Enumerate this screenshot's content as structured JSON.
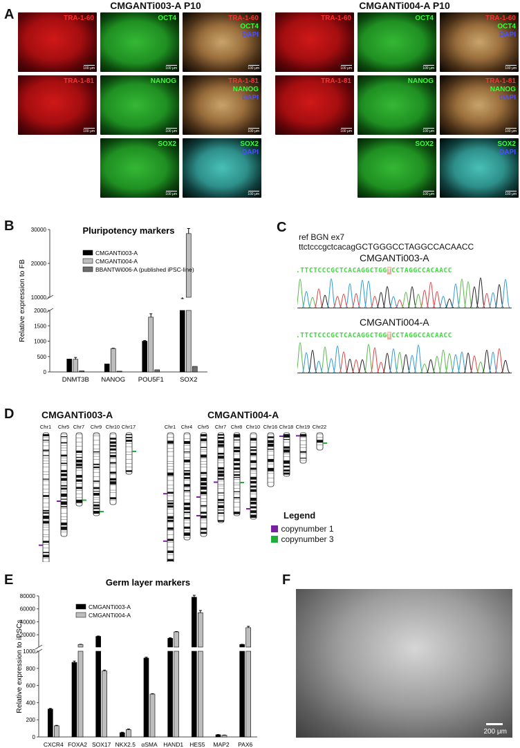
{
  "panelA": {
    "label": "A",
    "left_title": "CMGANTi003-A P10",
    "right_title": "CMGANTi004-A P10",
    "scalebar": "100 μm",
    "tiles": [
      {
        "id": "l-r1-c1",
        "labels": [
          "TRA-1-60"
        ],
        "colors": [
          "red"
        ],
        "bg": "red"
      },
      {
        "id": "l-r1-c2",
        "labels": [
          "OCT4"
        ],
        "colors": [
          "green"
        ],
        "bg": "green"
      },
      {
        "id": "l-r1-c3",
        "labels": [
          "TRA-1-60",
          "OCT4",
          "DAPI"
        ],
        "colors": [
          "red",
          "green",
          "blue"
        ],
        "bg": "merge"
      },
      {
        "id": "l-r2-c1",
        "labels": [
          "TRA-1-81"
        ],
        "colors": [
          "red"
        ],
        "bg": "red"
      },
      {
        "id": "l-r2-c2",
        "labels": [
          "NANOG"
        ],
        "colors": [
          "green"
        ],
        "bg": "green"
      },
      {
        "id": "l-r2-c3",
        "labels": [
          "TRA-1-81",
          "NANOG",
          "DAPI"
        ],
        "colors": [
          "red",
          "green",
          "blue"
        ],
        "bg": "merge"
      },
      {
        "id": "l-r3-c2",
        "labels": [
          "SOX2"
        ],
        "colors": [
          "green"
        ],
        "bg": "green"
      },
      {
        "id": "l-r3-c3",
        "labels": [
          "SOX2",
          "DAPI"
        ],
        "colors": [
          "green",
          "blue"
        ],
        "bg": "cyan"
      },
      {
        "id": "r-r1-c1",
        "labels": [
          "TRA-1-60"
        ],
        "colors": [
          "red"
        ],
        "bg": "red"
      },
      {
        "id": "r-r1-c2",
        "labels": [
          "OCT4"
        ],
        "colors": [
          "green"
        ],
        "bg": "green"
      },
      {
        "id": "r-r1-c3",
        "labels": [
          "TRA-1-60",
          "OCT4",
          "DAPI"
        ],
        "colors": [
          "red",
          "green",
          "blue"
        ],
        "bg": "merge"
      },
      {
        "id": "r-r2-c1",
        "labels": [
          "TRA-1-81"
        ],
        "colors": [
          "red"
        ],
        "bg": "red"
      },
      {
        "id": "r-r2-c2",
        "labels": [
          "NANOG"
        ],
        "colors": [
          "green"
        ],
        "bg": "green"
      },
      {
        "id": "r-r2-c3",
        "labels": [
          "TRA-1-81",
          "NANOG",
          "DAPI"
        ],
        "colors": [
          "red",
          "green",
          "blue"
        ],
        "bg": "merge"
      },
      {
        "id": "r-r3-c2",
        "labels": [
          "SOX2"
        ],
        "colors": [
          "green"
        ],
        "bg": "green"
      },
      {
        "id": "r-r3-c3",
        "labels": [
          "SOX2",
          "DAPI"
        ],
        "colors": [
          "green",
          "blue"
        ],
        "bg": "cyan"
      }
    ]
  },
  "panelB": {
    "label": "B"
  },
  "panelC": {
    "label": "C",
    "ref_text": "ref BGN ex7 ttctcccgctcacagGCTGGGCCTAGGCCACAACC",
    "sample1": "CMGANTi003-A",
    "sample2": "CMGANTi004-A",
    "seq_prefix": ".TTCTCCCGCTCACAGGCTGG",
    "seq_highlight": "T",
    "seq_suffix": "CCTAGGCCACAACC"
  },
  "panelD": {
    "label": "D",
    "left_title": "CMGANTi003-A",
    "right_title": "CMGANTi004-A",
    "left_chrs": [
      "Chr1",
      "Chr5",
      "Chr7",
      "Chr9",
      "Chr10",
      "Chr17"
    ],
    "right_chrs": [
      "Chr1",
      "Chr4",
      "Chr5",
      "Chr7",
      "Chr8",
      "Chr10",
      "Chr16",
      "Chr18",
      "Chr19",
      "Chr22"
    ],
    "legend_title": "Legend",
    "legend_items": [
      {
        "label": "copynumber 1",
        "color": "#7b1fa2"
      },
      {
        "label": "copynumber 3",
        "color": "#1fae3a"
      }
    ]
  },
  "panelE": {
    "label": "E"
  },
  "panelF": {
    "label": "F",
    "scalebar": "200 μm"
  },
  "chart_data": [
    {
      "type": "bar",
      "title": "Pluripotency markers",
      "ylabel": "Relative expression to FB",
      "categories": [
        "DNMT3B",
        "NANOG",
        "POU5F1",
        "SOX2"
      ],
      "broken_axis": {
        "lower_range": [
          0,
          2000
        ],
        "upper_range": [
          10000,
          30000
        ]
      },
      "yticks_lower": [
        "0",
        "500",
        "1000",
        "1500",
        "2000"
      ],
      "yticks_upper": [
        "10000",
        "20000",
        "30000"
      ],
      "series": [
        {
          "name": "CMGANTi003-A",
          "color": "#000000",
          "values": [
            420,
            260,
            1000,
            9300
          ],
          "errors": [
            0,
            0,
            20,
            300
          ]
        },
        {
          "name": "CMGANTi004-A",
          "color": "#bdbdbd",
          "values": [
            410,
            760,
            1780,
            28800
          ],
          "errors": [
            60,
            10,
            110,
            1500
          ]
        },
        {
          "name": "BBANTWi006-A (published iPSC-line)",
          "color": "#6e6e6e",
          "values": [
            35,
            25,
            70,
            180
          ],
          "errors": [
            0,
            0,
            0,
            0
          ]
        }
      ]
    },
    {
      "type": "bar",
      "title": "Germ layer markers",
      "ylabel": "Relative expression to iPSCs",
      "categories": [
        "CXCR4",
        "FOXA2",
        "SOX17",
        "NKX2.5",
        "αSMA",
        "HAND1",
        "HES5",
        "MAP2",
        "PAX6"
      ],
      "broken_axis": {
        "lower_range": [
          0,
          1000
        ],
        "upper_range": [
          1000,
          80000
        ]
      },
      "yticks_lower": [
        "0",
        "200",
        "400",
        "600",
        "800",
        "1000"
      ],
      "yticks_upper": [
        "20000",
        "40000",
        "60000",
        "80000"
      ],
      "series": [
        {
          "name": "CMGANTi003-A",
          "color": "#000000",
          "values": [
            325,
            870,
            17500,
            50,
            920,
            14500,
            78000,
            25,
            5000
          ],
          "errors": [
            8,
            15,
            600,
            5,
            10,
            800,
            3000,
            3,
            300
          ]
        },
        {
          "name": "CMGANTi004-A",
          "color": "#bdbdbd",
          "values": [
            130,
            5000,
            770,
            85,
            500,
            24500,
            54000,
            20,
            31000
          ],
          "errors": [
            5,
            300,
            10,
            8,
            5,
            500,
            3500,
            2,
            2000
          ]
        }
      ]
    }
  ]
}
